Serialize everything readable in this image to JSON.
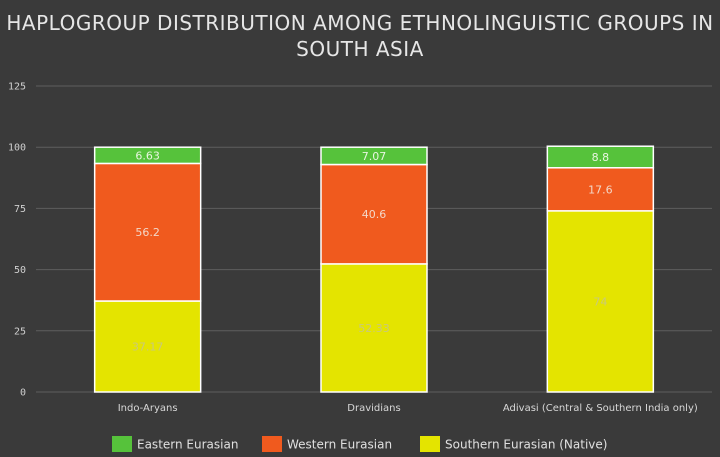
{
  "chart_data": {
    "type": "bar",
    "stacked": true,
    "title": "HAPLOGROUP DISTRIBUTION AMONG ETHNOLINGUISTIC GROUPS IN SOUTH ASIA",
    "title_lines": [
      "HAPLOGROUP DISTRIBUTION AMONG ETHNOLINGUISTIC GROUPS IN",
      "SOUTH ASIA"
    ],
    "categories": [
      "Indo-Aryans",
      "Dravidians",
      "Adivasi (Central & Southern India only)"
    ],
    "series": [
      {
        "name": "Southern Eurasian (Native)",
        "values": [
          37.17,
          52.33,
          74
        ],
        "labels": [
          "37.17",
          "52.33",
          "74"
        ],
        "color": "#e4e400",
        "label_color": "#c9c97a"
      },
      {
        "name": "Western Eurasian",
        "values": [
          56.2,
          40.6,
          17.6
        ],
        "labels": [
          "56.2",
          "40.6",
          "17.6"
        ],
        "color": "#f05a1e",
        "label_color": "#f3d7c8"
      },
      {
        "name": "Eastern Eurasian",
        "values": [
          6.63,
          7.07,
          8.8
        ],
        "labels": [
          "6.63",
          "7.07",
          "8.8"
        ],
        "color": "#56c23b",
        "label_color": "#e8f5e0"
      }
    ],
    "legend": [
      "Eastern Eurasian",
      "Western Eurasian",
      "Southern Eurasian (Native)"
    ],
    "legend_colors": [
      "#56c23b",
      "#f05a1e",
      "#e4e400"
    ],
    "ylim": [
      0,
      125
    ],
    "yticks": [
      "0",
      "25",
      "50",
      "75",
      "100",
      "125"
    ],
    "ytick_values": [
      0,
      25,
      50,
      75,
      100,
      125
    ],
    "grid": true,
    "legend_position": "bottom"
  }
}
